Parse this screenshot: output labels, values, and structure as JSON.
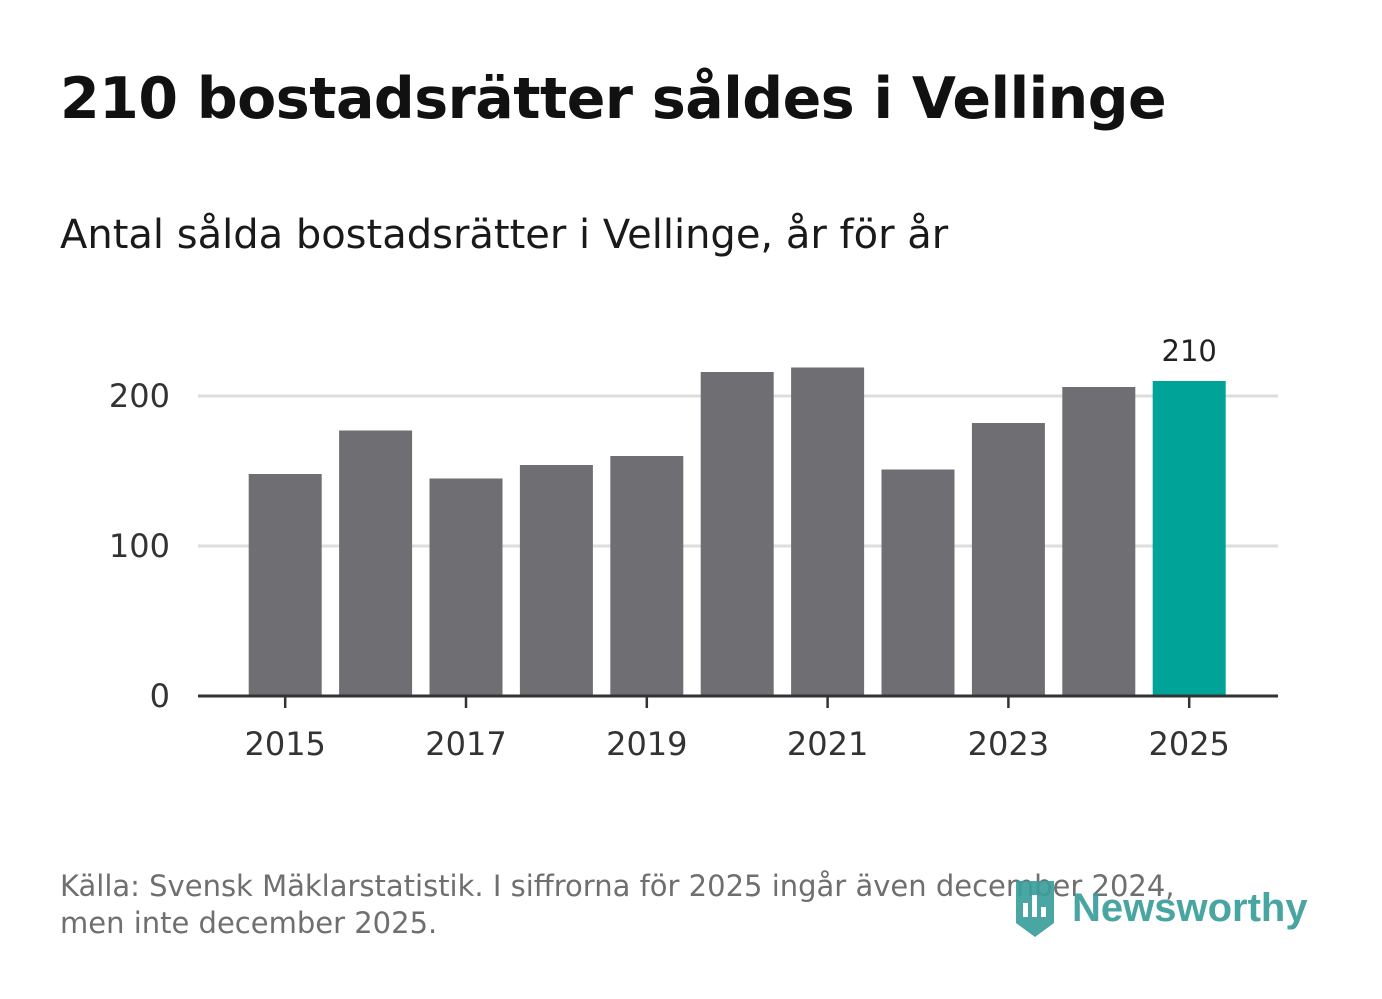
{
  "header": {
    "title": "210 bostadsrätter såldes i Vellinge",
    "subtitle": "Antal sålda bostadsrätter i Vellinge, år för år"
  },
  "footer": {
    "source_line1": "Källa: Svensk Mäklarstatistik. I siffrorna för 2025 ingår även december 2024,",
    "source_line2": "men inte december 2025.",
    "brand": "Newsworthy"
  },
  "colors": {
    "bar": "#6f6e73",
    "highlight": "#00a398",
    "grid": "#dddddd",
    "axis": "#333333",
    "brand": "#3a9e9a"
  },
  "icons": {
    "brand_logo": "newsworthy-logo-icon"
  },
  "chart_data": {
    "type": "bar",
    "title": "Antal sålda bostadsrätter i Vellinge, år för år",
    "xlabel": "",
    "ylabel": "",
    "categories": [
      "2015",
      "2016",
      "2017",
      "2018",
      "2019",
      "2020",
      "2021",
      "2022",
      "2023",
      "2024",
      "2025"
    ],
    "values": [
      148,
      177,
      145,
      154,
      160,
      216,
      219,
      151,
      182,
      206,
      210
    ],
    "highlight_index": 10,
    "highlight_label": "210",
    "x_tick_labels": [
      "2015",
      "2017",
      "2019",
      "2021",
      "2023",
      "2025"
    ],
    "y_ticks": [
      0,
      100,
      200
    ],
    "y_tick_labels": [
      "0",
      "100",
      "200"
    ],
    "ylim": [
      0,
      230
    ],
    "grid": true,
    "legend": "none"
  }
}
